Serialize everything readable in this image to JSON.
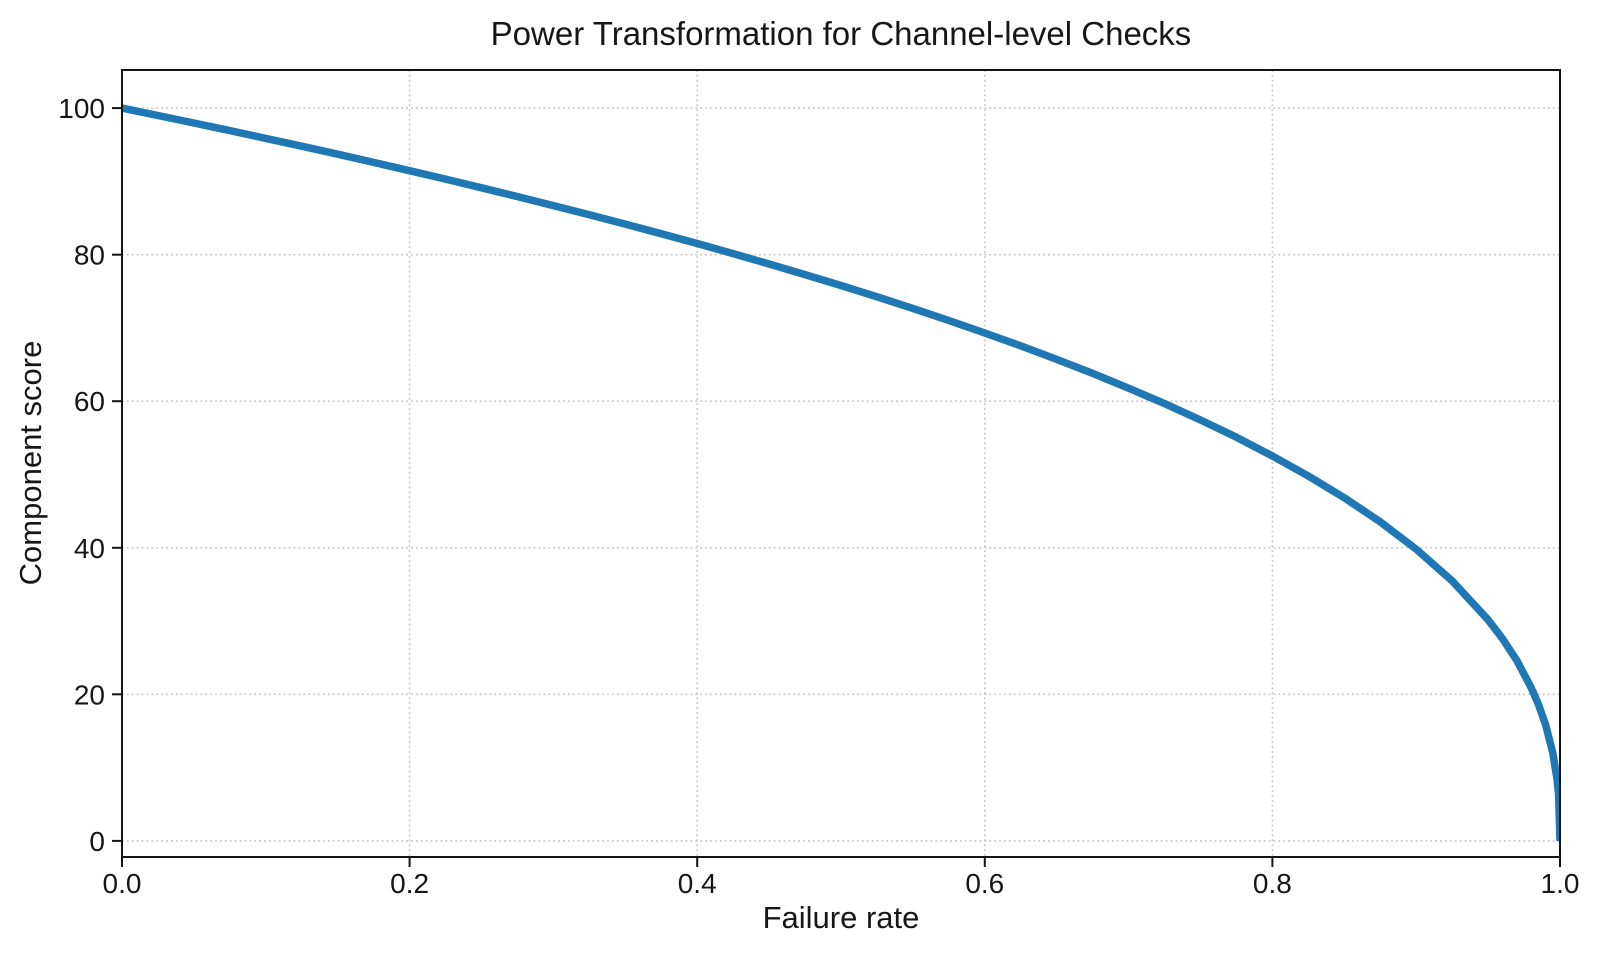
{
  "style": {
    "background": "#ffffff",
    "text_color": "#161616",
    "spine_color": "#141414",
    "grid_color": "#c6c6c6",
    "accent_line_color": "#1f77b4"
  },
  "chart_data": {
    "type": "line",
    "title": "Power Transformation for Channel-level Checks",
    "xlabel": "Failure rate",
    "ylabel": "Component score",
    "xlim": [
      0,
      1
    ],
    "ylim": [
      -2.2,
      105.2
    ],
    "grid": {
      "visible": true,
      "style": "dotted"
    },
    "legend": {
      "visible": false
    },
    "xticks": {
      "values": [
        0,
        0.2,
        0.4,
        0.6,
        0.8,
        1.0
      ],
      "labels": [
        "0.0",
        "0.2",
        "0.4",
        "0.6",
        "0.8",
        "1.0"
      ]
    },
    "yticks": {
      "values": [
        0,
        20,
        40,
        60,
        80,
        100
      ],
      "labels": [
        "0",
        "20",
        "40",
        "60",
        "80",
        "100"
      ]
    },
    "series": [
      {
        "name": "component-score-curve",
        "color": "#1f77b4",
        "line_width": 7.5,
        "power_exponent": 0.4,
        "points": [
          [
            0,
            100
          ],
          [
            0.025,
            98.99
          ],
          [
            0.05,
            97.97
          ],
          [
            0.075,
            96.93
          ],
          [
            0.1,
            95.87
          ],
          [
            0.125,
            94.8
          ],
          [
            0.15,
            93.71
          ],
          [
            0.175,
            92.59
          ],
          [
            0.2,
            91.46
          ],
          [
            0.225,
            90.31
          ],
          [
            0.25,
            89.13
          ],
          [
            0.275,
            87.93
          ],
          [
            0.3,
            86.7
          ],
          [
            0.325,
            85.45
          ],
          [
            0.35,
            84.17
          ],
          [
            0.375,
            82.86
          ],
          [
            0.4,
            81.52
          ],
          [
            0.425,
            80.14
          ],
          [
            0.45,
            78.73
          ],
          [
            0.475,
            77.28
          ],
          [
            0.5,
            75.79
          ],
          [
            0.525,
            74.25
          ],
          [
            0.55,
            72.66
          ],
          [
            0.575,
            71.02
          ],
          [
            0.6,
            69.31
          ],
          [
            0.625,
            67.55
          ],
          [
            0.65,
            65.71
          ],
          [
            0.675,
            63.79
          ],
          [
            0.7,
            61.78
          ],
          [
            0.725,
            59.67
          ],
          [
            0.75,
            57.43
          ],
          [
            0.775,
            55.07
          ],
          [
            0.8,
            52.53
          ],
          [
            0.825,
            49.8
          ],
          [
            0.85,
            46.82
          ],
          [
            0.875,
            43.53
          ],
          [
            0.9,
            39.81
          ],
          [
            0.925,
            35.48
          ],
          [
            0.95,
            30.17
          ],
          [
            0.96,
            27.59
          ],
          [
            0.97,
            24.6
          ],
          [
            0.98,
            20.91
          ],
          [
            0.985,
            18.64
          ],
          [
            0.99,
            15.85
          ],
          [
            0.995,
            12.01
          ],
          [
            0.998,
            8.33
          ],
          [
            0.999,
            6.31
          ],
          [
            1,
            0
          ]
        ]
      }
    ]
  }
}
